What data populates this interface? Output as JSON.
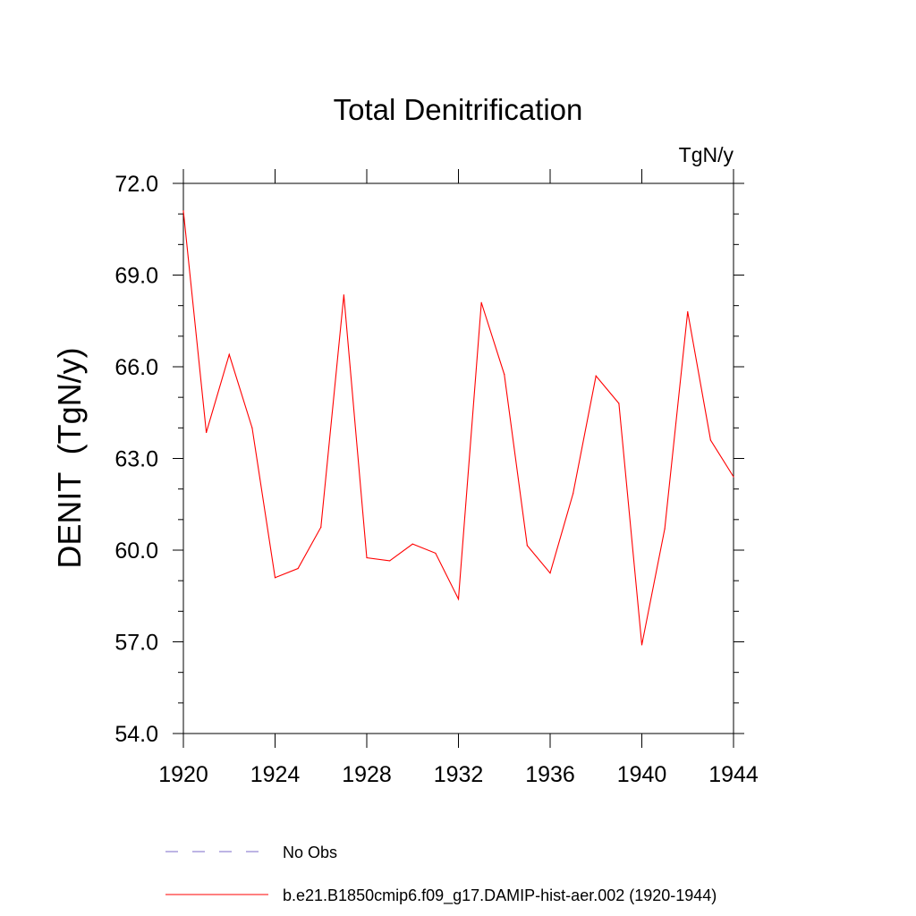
{
  "chart_data": {
    "type": "line",
    "title": "Total Denitrification",
    "units_label": "TgN/y",
    "xlabel": "",
    "ylabel": "DENIT  (TgN/y)",
    "xlim": [
      1920,
      1944
    ],
    "ylim": [
      54.0,
      72.0
    ],
    "xticks": [
      1920,
      1924,
      1928,
      1932,
      1936,
      1940,
      1944
    ],
    "xtick_labels": [
      "1920",
      "1924",
      "1928",
      "1932",
      "1936",
      "1940",
      "1944"
    ],
    "yticks": [
      54.0,
      57.0,
      60.0,
      63.0,
      66.0,
      69.0,
      72.0
    ],
    "ytick_labels": [
      "54.0",
      "57.0",
      "60.0",
      "63.0",
      "66.0",
      "69.0",
      "72.0"
    ],
    "grid": false,
    "legend_position": "bottom",
    "series": [
      {
        "name": "b.e21.B1850cmip6.f09_g17.DAMIP-hist-aer.002 (1920-1944)",
        "color": "#ff0000",
        "style": "solid",
        "x": [
          1920,
          1921,
          1922,
          1923,
          1924,
          1925,
          1926,
          1927,
          1928,
          1929,
          1930,
          1931,
          1932,
          1933,
          1934,
          1935,
          1936,
          1937,
          1938,
          1939,
          1940,
          1941,
          1942,
          1943,
          1944
        ],
        "y": [
          71.1,
          63.85,
          66.4,
          64.0,
          59.1,
          59.4,
          60.75,
          68.35,
          59.75,
          59.65,
          60.2,
          59.9,
          58.4,
          68.1,
          65.75,
          60.15,
          59.25,
          61.85,
          65.7,
          64.8,
          56.9,
          60.7,
          67.8,
          63.6,
          62.4
        ]
      }
    ],
    "legend": [
      {
        "label": "No Obs",
        "color": "#7b68c8",
        "style": "dashed"
      },
      {
        "label": "b.e21.B1850cmip6.f09_g17.DAMIP-hist-aer.002 (1920-1944)",
        "color": "#ff0000",
        "style": "solid"
      }
    ]
  }
}
